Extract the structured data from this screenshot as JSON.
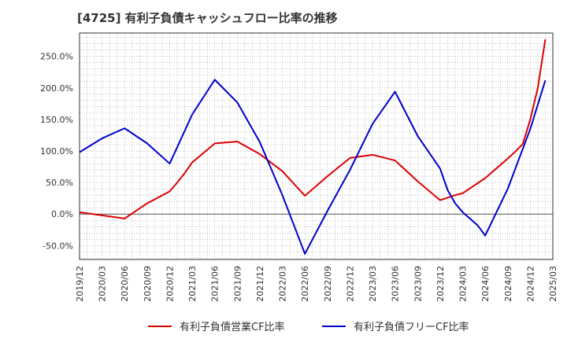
{
  "chart_data": {
    "type": "line",
    "title": "[4725]  有利子負債キャッシュフロー比率の推移",
    "xlabel": "",
    "ylabel": "",
    "x_ticks": [
      "2019/12",
      "2020/03",
      "2020/06",
      "2020/09",
      "2020/12",
      "2021/03",
      "2021/06",
      "2021/09",
      "2021/12",
      "2022/03",
      "2022/06",
      "2022/09",
      "2022/12",
      "2023/03",
      "2023/06",
      "2023/09",
      "2023/12",
      "2024/03",
      "2024/06",
      "2024/09",
      "2024/12",
      "2025/03"
    ],
    "y_ticks": [
      "250.0%",
      "200.0%",
      "150.0%",
      "100.0%",
      "50.0%",
      "0.0%",
      "-50.0%"
    ],
    "y_tick_values": [
      250,
      200,
      150,
      100,
      50,
      0,
      -50
    ],
    "ylim": [
      -72,
      287
    ],
    "xlim": [
      "2019/12",
      "2025/03"
    ],
    "grid": true,
    "legend_position": "bottom",
    "series": [
      {
        "name": "有利子負債営業CF比率",
        "color": "#dd0000",
        "points": [
          [
            "2019/12",
            3
          ],
          [
            "2020/03",
            -2
          ],
          [
            "2020/06",
            -7
          ],
          [
            "2020/09",
            17
          ],
          [
            "2020/12",
            36
          ],
          [
            "2021/01",
            50
          ],
          [
            "2021/02",
            65
          ],
          [
            "2021/03",
            82
          ],
          [
            "2021/06",
            112
          ],
          [
            "2021/09",
            115
          ],
          [
            "2021/12",
            95
          ],
          [
            "2022/03",
            68
          ],
          [
            "2022/06",
            29
          ],
          [
            "2022/09",
            60
          ],
          [
            "2022/12",
            89
          ],
          [
            "2023/03",
            94
          ],
          [
            "2023/06",
            85
          ],
          [
            "2023/09",
            52
          ],
          [
            "2023/12",
            22
          ],
          [
            "2024/02",
            30
          ],
          [
            "2024/03",
            33
          ],
          [
            "2024/06",
            57
          ],
          [
            "2024/09",
            88
          ],
          [
            "2024/10",
            99
          ],
          [
            "2024/11",
            111
          ],
          [
            "2024/12",
            150
          ],
          [
            "2025/01",
            200
          ],
          [
            "2025/02",
            277
          ]
        ]
      },
      {
        "name": "有利子負債フリーCF比率",
        "color": "#0000cc",
        "points": [
          [
            "2019/12",
            98
          ],
          [
            "2020/03",
            120
          ],
          [
            "2020/06",
            136
          ],
          [
            "2020/09",
            112
          ],
          [
            "2020/12",
            80
          ],
          [
            "2021/03",
            158
          ],
          [
            "2021/06",
            213
          ],
          [
            "2021/09",
            177
          ],
          [
            "2021/12",
            114
          ],
          [
            "2022/03",
            30
          ],
          [
            "2022/06",
            -63
          ],
          [
            "2022/09",
            5
          ],
          [
            "2022/12",
            70
          ],
          [
            "2023/03",
            143
          ],
          [
            "2023/06",
            194
          ],
          [
            "2023/09",
            124
          ],
          [
            "2023/12",
            72
          ],
          [
            "2024/01",
            38
          ],
          [
            "2024/02",
            17
          ],
          [
            "2024/03",
            3
          ],
          [
            "2024/05",
            -18
          ],
          [
            "2024/06",
            -34
          ],
          [
            "2024/09",
            40
          ],
          [
            "2024/12",
            135
          ],
          [
            "2025/02",
            212
          ]
        ]
      }
    ]
  }
}
